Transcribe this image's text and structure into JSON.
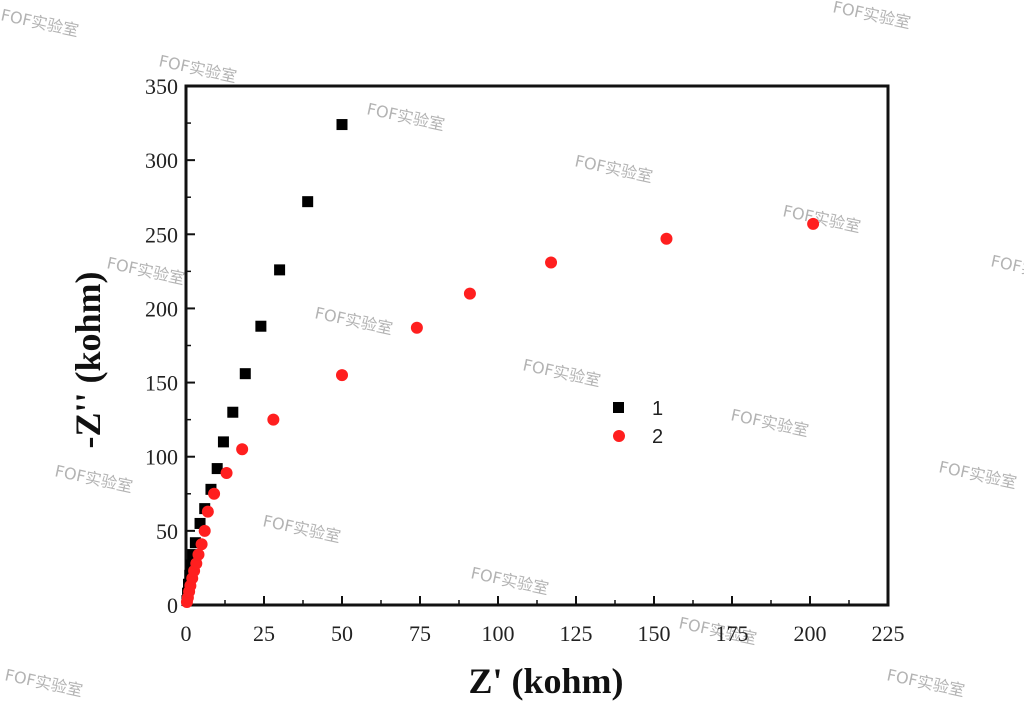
{
  "chart_data": {
    "type": "scatter",
    "xlabel": "Z' (kohm)",
    "ylabel": "-Z'' (kohm)",
    "xlim": [
      0,
      225
    ],
    "ylim": [
      0,
      350
    ],
    "xticks": [
      "0",
      "25",
      "50",
      "75",
      "100",
      "125",
      "150",
      "175",
      "200",
      "225"
    ],
    "yticks": [
      "0",
      "50",
      "100",
      "150",
      "200",
      "250",
      "300",
      "350"
    ],
    "grid": false,
    "legend_placement": "center-right",
    "series": [
      {
        "name": "1",
        "marker": "square",
        "color": "#000000",
        "points": [
          {
            "x": 0.3,
            "y": 3
          },
          {
            "x": 0.5,
            "y": 8
          },
          {
            "x": 0.8,
            "y": 14
          },
          {
            "x": 1.2,
            "y": 20
          },
          {
            "x": 1.6,
            "y": 27
          },
          {
            "x": 2.2,
            "y": 34
          },
          {
            "x": 3.0,
            "y": 42
          },
          {
            "x": 4.5,
            "y": 55
          },
          {
            "x": 6,
            "y": 65
          },
          {
            "x": 8,
            "y": 78
          },
          {
            "x": 10,
            "y": 92
          },
          {
            "x": 12,
            "y": 110
          },
          {
            "x": 15,
            "y": 130
          },
          {
            "x": 19,
            "y": 156
          },
          {
            "x": 24,
            "y": 188
          },
          {
            "x": 30,
            "y": 226
          },
          {
            "x": 39,
            "y": 272
          },
          {
            "x": 50,
            "y": 324
          }
        ]
      },
      {
        "name": "2",
        "marker": "circle",
        "color": "#ff1f1f",
        "points": [
          {
            "x": 0.3,
            "y": 2
          },
          {
            "x": 0.6,
            "y": 5
          },
          {
            "x": 1.0,
            "y": 9
          },
          {
            "x": 1.4,
            "y": 13
          },
          {
            "x": 2.0,
            "y": 18
          },
          {
            "x": 2.6,
            "y": 23
          },
          {
            "x": 3.3,
            "y": 28
          },
          {
            "x": 4.0,
            "y": 34
          },
          {
            "x": 5.0,
            "y": 41
          },
          {
            "x": 6.0,
            "y": 50
          },
          {
            "x": 7,
            "y": 63
          },
          {
            "x": 9,
            "y": 75
          },
          {
            "x": 13,
            "y": 89
          },
          {
            "x": 18,
            "y": 105
          },
          {
            "x": 28,
            "y": 125
          },
          {
            "x": 50,
            "y": 155
          },
          {
            "x": 74,
            "y": 187
          },
          {
            "x": 91,
            "y": 210
          },
          {
            "x": 117,
            "y": 231
          },
          {
            "x": 154,
            "y": 247
          },
          {
            "x": 201,
            "y": 257
          }
        ]
      }
    ]
  },
  "watermark": {
    "text": "FOF实验室"
  }
}
